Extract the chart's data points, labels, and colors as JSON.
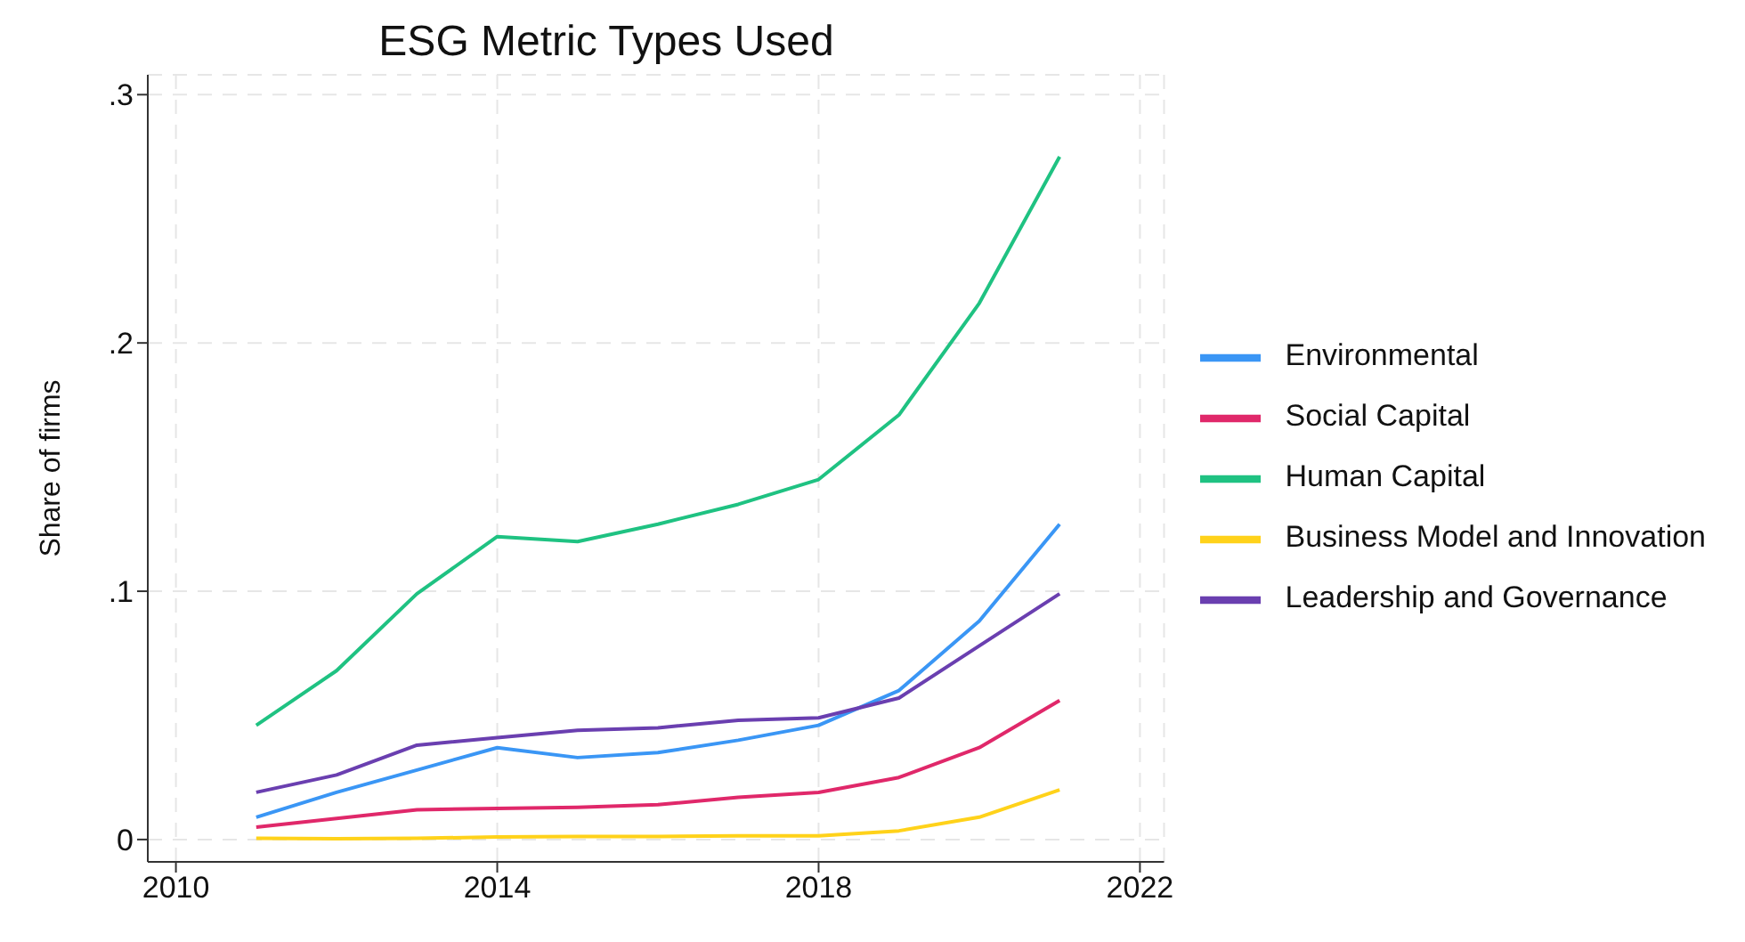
{
  "chart_data": {
    "type": "line",
    "title": "ESG Metric Types Used",
    "ylabel": "Share of firms",
    "x": [
      2011,
      2012,
      2013,
      2014,
      2015,
      2016,
      2017,
      2018,
      2019,
      2020,
      2021
    ],
    "series": [
      {
        "name": "Environmental",
        "color": "#3a96f5",
        "values": [
          0.009,
          0.019,
          0.028,
          0.037,
          0.033,
          0.035,
          0.04,
          0.046,
          0.06,
          0.088,
          0.127
        ]
      },
      {
        "name": "Social Capital",
        "color": "#e0286a",
        "values": [
          0.005,
          0.0085,
          0.012,
          0.0125,
          0.013,
          0.014,
          0.017,
          0.019,
          0.025,
          0.037,
          0.056
        ]
      },
      {
        "name": "Human Capital",
        "color": "#1fc282",
        "values": [
          0.046,
          0.068,
          0.099,
          0.122,
          0.12,
          0.127,
          0.135,
          0.145,
          0.171,
          0.216,
          0.275
        ]
      },
      {
        "name": "Business Model and Innovation",
        "color": "#ffd21a",
        "values": [
          0.0005,
          0.0003,
          0.0005,
          0.001,
          0.0012,
          0.0012,
          0.0015,
          0.0015,
          0.0035,
          0.009,
          0.02
        ]
      },
      {
        "name": "Leadership and Governance",
        "color": "#6a3fb0",
        "values": [
          0.019,
          0.026,
          0.038,
          0.041,
          0.044,
          0.045,
          0.048,
          0.049,
          0.057,
          0.078,
          0.099
        ]
      }
    ],
    "xlim": [
      2009.65,
      2022.3
    ],
    "xticks": [
      2010,
      2014,
      2018,
      2022
    ],
    "ylim": [
      -0.009,
      0.308
    ],
    "yticks": [
      0,
      {
        "value": 0.1,
        "label": ".1"
      },
      {
        "value": 0.2,
        "label": ".2"
      },
      {
        "value": 0.3,
        "label": ".3"
      }
    ],
    "grid": true,
    "legend": "right",
    "marker": "none",
    "line_style": "solid"
  }
}
